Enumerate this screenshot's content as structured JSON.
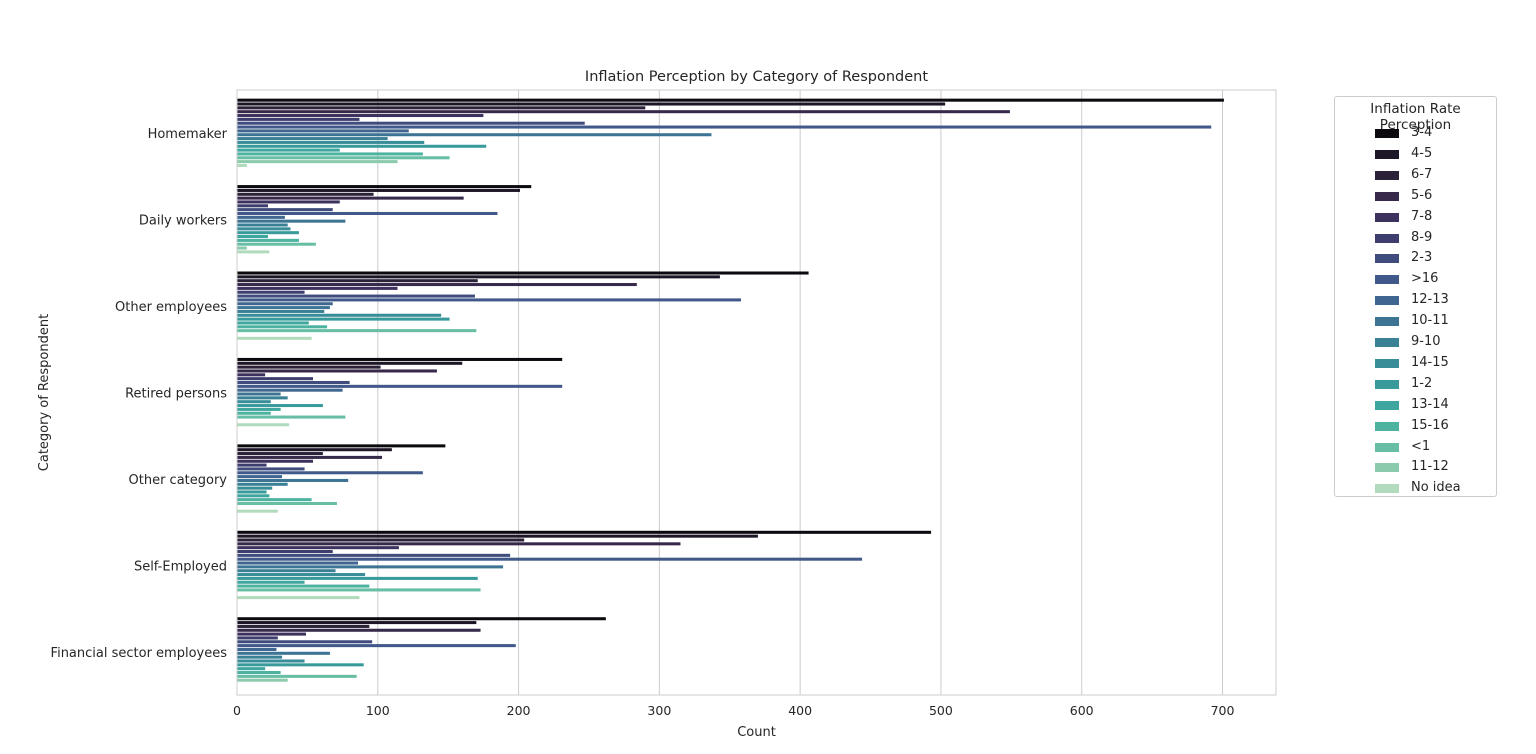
{
  "chart_data": {
    "type": "bar",
    "orientation": "horizontal",
    "title": "Inflation Perception by Category of Respondent",
    "xlabel": "Count",
    "ylabel": "Category of Respondent",
    "xlim": [
      0,
      738
    ],
    "xticks": [
      0,
      100,
      200,
      300,
      400,
      500,
      600,
      700
    ],
    "grid": "vertical",
    "legend_title": "Inflation Rate Perception",
    "legend_position": "outside-right",
    "categories": [
      "Homemaker",
      "Daily workers",
      "Other employees",
      "Retired persons",
      "Other category",
      "Self-Employed",
      "Financial sector employees"
    ],
    "series": [
      {
        "name": "3-4",
        "color": "#0c0a0e",
        "values": [
          701,
          209,
          406,
          231,
          148,
          493,
          262
        ]
      },
      {
        "name": "4-5",
        "color": "#1d1626",
        "values": [
          503,
          201,
          343,
          160,
          110,
          370,
          170
        ]
      },
      {
        "name": "6-7",
        "color": "#2b2138",
        "values": [
          290,
          97,
          171,
          102,
          61,
          204,
          94
        ]
      },
      {
        "name": "5-6",
        "color": "#37294a",
        "values": [
          549,
          161,
          284,
          142,
          103,
          315,
          173
        ]
      },
      {
        "name": "7-8",
        "color": "#3d315d",
        "values": [
          175,
          73,
          114,
          20,
          54,
          115,
          49
        ]
      },
      {
        "name": "8-9",
        "color": "#3e3e6e",
        "values": [
          87,
          22,
          48,
          54,
          21,
          68,
          29
        ]
      },
      {
        "name": "2-3",
        "color": "#404c7d",
        "values": [
          247,
          68,
          169,
          80,
          48,
          194,
          96
        ]
      },
      {
        "name": ">16",
        "color": "#40598a",
        "values": [
          692,
          185,
          358,
          231,
          132,
          444,
          198
        ]
      },
      {
        "name": "12-13",
        "color": "#3f6690",
        "values": [
          122,
          34,
          68,
          75,
          32,
          86,
          28
        ]
      },
      {
        "name": "10-11",
        "color": "#3d7494",
        "values": [
          337,
          77,
          66,
          31,
          79,
          189,
          66
        ]
      },
      {
        "name": "9-10",
        "color": "#3a8196",
        "values": [
          107,
          36,
          62,
          36,
          36,
          70,
          32
        ]
      },
      {
        "name": "14-15",
        "color": "#388d98",
        "values": [
          133,
          38,
          145,
          24,
          25,
          91,
          48
        ]
      },
      {
        "name": "1-2",
        "color": "#399a9b",
        "values": [
          177,
          44,
          151,
          61,
          21,
          171,
          90
        ]
      },
      {
        "name": "13-14",
        "color": "#3ea69e",
        "values": [
          73,
          22,
          51,
          31,
          23,
          48,
          20
        ]
      },
      {
        "name": "15-16",
        "color": "#4db2a0",
        "values": [
          132,
          44,
          64,
          24,
          53,
          94,
          31
        ]
      },
      {
        "name": "<1",
        "color": "#67bea4",
        "values": [
          151,
          56,
          170,
          77,
          71,
          173,
          85
        ]
      },
      {
        "name": "11-12",
        "color": "#8ccaad",
        "values": [
          114,
          7,
          0,
          0,
          0,
          0,
          36
        ]
      },
      {
        "name": "No idea",
        "color": "#b2dbbd",
        "values": [
          7,
          23,
          53,
          37,
          29,
          87,
          0
        ]
      }
    ]
  }
}
